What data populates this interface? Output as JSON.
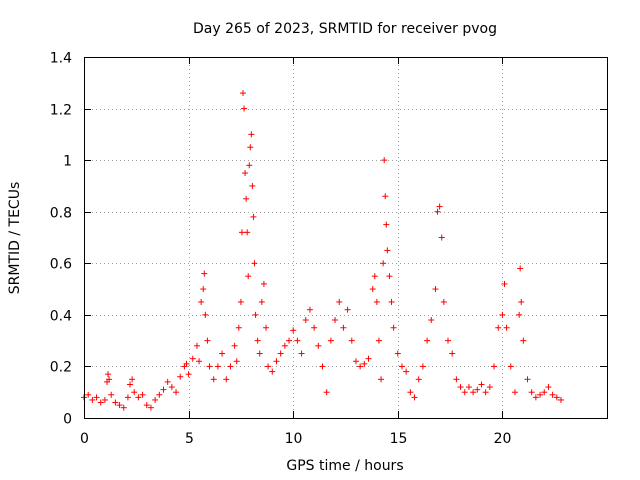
{
  "chart_data": {
    "type": "scatter",
    "title": "Day 265 of 2023, SRMTID for receiver pvog",
    "xlabel": "GPS time / hours",
    "ylabel": "SRMTID / TECUs",
    "xlim": [
      0,
      25
    ],
    "ylim": [
      0,
      1.4
    ],
    "xticks": [
      0,
      5,
      10,
      15,
      20
    ],
    "xtick_labels": [
      "0",
      "5",
      "10",
      "15",
      "20"
    ],
    "yticks": [
      0,
      0.2,
      0.4,
      0.6,
      0.8,
      1.0,
      1.2,
      1.4
    ],
    "ytick_labels": [
      "0",
      "0.2",
      "0.4",
      "0.6",
      "0.8",
      "1",
      "1.2",
      "1.4"
    ],
    "grid": true,
    "marker": "+",
    "color": "#ff0000",
    "series": [
      {
        "name": "SRMTID",
        "points": [
          [
            0.0,
            0.08
          ],
          [
            0.2,
            0.09
          ],
          [
            0.4,
            0.07
          ],
          [
            0.6,
            0.08
          ],
          [
            0.8,
            0.06
          ],
          [
            1.0,
            0.07
          ],
          [
            1.1,
            0.14
          ],
          [
            1.15,
            0.17
          ],
          [
            1.2,
            0.15
          ],
          [
            1.3,
            0.09
          ],
          [
            1.5,
            0.06
          ],
          [
            1.7,
            0.05
          ],
          [
            1.9,
            0.04
          ],
          [
            2.1,
            0.08
          ],
          [
            2.2,
            0.13
          ],
          [
            2.3,
            0.15
          ],
          [
            2.4,
            0.1
          ],
          [
            2.6,
            0.08
          ],
          [
            2.8,
            0.09
          ],
          [
            3.0,
            0.05
          ],
          [
            3.2,
            0.04
          ],
          [
            3.4,
            0.07
          ],
          [
            3.6,
            0.09
          ],
          [
            3.8,
            0.11
          ],
          [
            4.0,
            0.14
          ],
          [
            4.2,
            0.12
          ],
          [
            4.4,
            0.1
          ],
          [
            4.6,
            0.16
          ],
          [
            4.8,
            0.2
          ],
          [
            4.9,
            0.21
          ],
          [
            5.0,
            0.17
          ],
          [
            5.2,
            0.23
          ],
          [
            5.4,
            0.28
          ],
          [
            5.5,
            0.22
          ],
          [
            5.6,
            0.45
          ],
          [
            5.7,
            0.5
          ],
          [
            5.75,
            0.56
          ],
          [
            5.8,
            0.4
          ],
          [
            5.9,
            0.3
          ],
          [
            6.0,
            0.2
          ],
          [
            6.2,
            0.15
          ],
          [
            6.4,
            0.2
          ],
          [
            6.6,
            0.25
          ],
          [
            6.8,
            0.15
          ],
          [
            7.0,
            0.2
          ],
          [
            7.2,
            0.28
          ],
          [
            7.3,
            0.22
          ],
          [
            7.4,
            0.35
          ],
          [
            7.5,
            0.45
          ],
          [
            7.55,
            0.72
          ],
          [
            7.6,
            1.26
          ],
          [
            7.65,
            1.2
          ],
          [
            7.7,
            0.95
          ],
          [
            7.75,
            0.85
          ],
          [
            7.8,
            0.72
          ],
          [
            7.85,
            0.55
          ],
          [
            7.9,
            0.98
          ],
          [
            7.95,
            1.05
          ],
          [
            8.0,
            1.1
          ],
          [
            8.05,
            0.9
          ],
          [
            8.1,
            0.78
          ],
          [
            8.15,
            0.6
          ],
          [
            8.2,
            0.4
          ],
          [
            8.3,
            0.3
          ],
          [
            8.4,
            0.25
          ],
          [
            8.5,
            0.45
          ],
          [
            8.6,
            0.52
          ],
          [
            8.7,
            0.35
          ],
          [
            8.8,
            0.2
          ],
          [
            9.0,
            0.18
          ],
          [
            9.2,
            0.22
          ],
          [
            9.4,
            0.25
          ],
          [
            9.6,
            0.28
          ],
          [
            9.8,
            0.3
          ],
          [
            10.0,
            0.34
          ],
          [
            10.2,
            0.3
          ],
          [
            10.4,
            0.25
          ],
          [
            10.6,
            0.38
          ],
          [
            10.8,
            0.42
          ],
          [
            11.0,
            0.35
          ],
          [
            11.2,
            0.28
          ],
          [
            11.4,
            0.2
          ],
          [
            11.6,
            0.1
          ],
          [
            11.8,
            0.3
          ],
          [
            12.0,
            0.38
          ],
          [
            12.2,
            0.45
          ],
          [
            12.4,
            0.35
          ],
          [
            12.6,
            0.42
          ],
          [
            12.8,
            0.3
          ],
          [
            13.0,
            0.22
          ],
          [
            13.2,
            0.2
          ],
          [
            13.4,
            0.21
          ],
          [
            13.6,
            0.23
          ],
          [
            13.8,
            0.5
          ],
          [
            13.9,
            0.55
          ],
          [
            14.0,
            0.45
          ],
          [
            14.1,
            0.3
          ],
          [
            14.2,
            0.15
          ],
          [
            14.3,
            0.6
          ],
          [
            14.35,
            1.0
          ],
          [
            14.4,
            0.86
          ],
          [
            14.45,
            0.75
          ],
          [
            14.5,
            0.65
          ],
          [
            14.6,
            0.55
          ],
          [
            14.7,
            0.45
          ],
          [
            14.8,
            0.35
          ],
          [
            15.0,
            0.25
          ],
          [
            15.2,
            0.2
          ],
          [
            15.4,
            0.18
          ],
          [
            15.6,
            0.1
          ],
          [
            15.8,
            0.08
          ],
          [
            16.0,
            0.15
          ],
          [
            16.2,
            0.2
          ],
          [
            16.4,
            0.3
          ],
          [
            16.6,
            0.38
          ],
          [
            16.8,
            0.5
          ],
          [
            16.9,
            0.8
          ],
          [
            17.0,
            0.82
          ],
          [
            17.1,
            0.7
          ],
          [
            17.2,
            0.45
          ],
          [
            17.4,
            0.3
          ],
          [
            17.6,
            0.25
          ],
          [
            17.8,
            0.15
          ],
          [
            18.0,
            0.12
          ],
          [
            18.2,
            0.1
          ],
          [
            18.4,
            0.12
          ],
          [
            18.6,
            0.1
          ],
          [
            18.8,
            0.11
          ],
          [
            19.0,
            0.13
          ],
          [
            19.2,
            0.1
          ],
          [
            19.4,
            0.12
          ],
          [
            19.6,
            0.2
          ],
          [
            19.8,
            0.35
          ],
          [
            20.0,
            0.4
          ],
          [
            20.1,
            0.52
          ],
          [
            20.2,
            0.35
          ],
          [
            20.4,
            0.2
          ],
          [
            20.6,
            0.1
          ],
          [
            20.8,
            0.4
          ],
          [
            20.85,
            0.58
          ],
          [
            20.9,
            0.45
          ],
          [
            21.0,
            0.3
          ],
          [
            21.2,
            0.15
          ],
          [
            21.4,
            0.1
          ],
          [
            21.6,
            0.08
          ],
          [
            21.8,
            0.09
          ],
          [
            22.0,
            0.1
          ],
          [
            22.2,
            0.12
          ],
          [
            22.4,
            0.09
          ],
          [
            22.6,
            0.08
          ],
          [
            22.8,
            0.07
          ]
        ]
      }
    ]
  }
}
